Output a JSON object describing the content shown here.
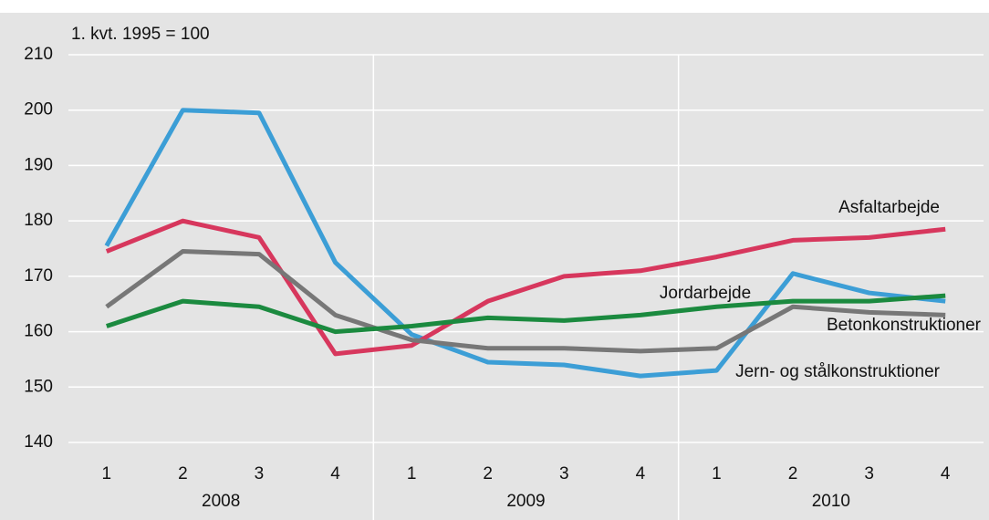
{
  "chart_data": {
    "type": "line",
    "y_axis_label": "1. kvt. 1995 = 100",
    "categories": [
      "1",
      "2",
      "3",
      "4",
      "1",
      "2",
      "3",
      "4",
      "1",
      "2",
      "3",
      "4"
    ],
    "groups": [
      "2008",
      "2009",
      "2010"
    ],
    "series": [
      {
        "name": "Jern- og stålkonstruktioner",
        "color": "#3c9ed6",
        "values": [
          175.5,
          200,
          199.5,
          172.5,
          159.5,
          154.5,
          154,
          152,
          153,
          170.5,
          167,
          165.5
        ]
      },
      {
        "name": "Asfaltarbejde",
        "color": "#d7375d",
        "values": [
          174.5,
          180,
          177,
          156,
          157.5,
          165.5,
          170,
          171,
          173.5,
          176.5,
          177,
          178.5
        ]
      },
      {
        "name": "Betonkonstruktioner",
        "color": "#777777",
        "values": [
          164.5,
          174.5,
          174,
          163,
          158.5,
          157,
          157,
          156.5,
          157,
          164.5,
          163.5,
          163
        ]
      },
      {
        "name": "Jordarbejde",
        "color": "#1b8a3f",
        "values": [
          161,
          165.5,
          164.5,
          160,
          161,
          162.5,
          162,
          163,
          164.5,
          165.5,
          165.5,
          166.5
        ]
      }
    ],
    "ylim": [
      140,
      210
    ],
    "yticks": [
      140,
      150,
      160,
      170,
      180,
      190,
      200,
      210
    ],
    "grid": true
  }
}
